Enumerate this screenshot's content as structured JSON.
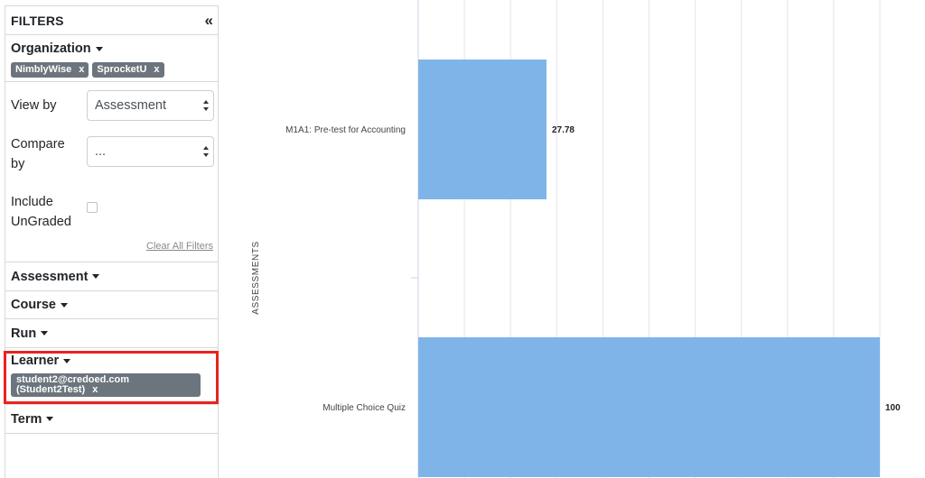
{
  "sidebar": {
    "title": "FILTERS",
    "collapse_icon": "«",
    "organization": {
      "label": "Organization",
      "chips": [
        {
          "label": "NimblyWise",
          "remove": "x"
        },
        {
          "label": "SprocketU",
          "remove": "x"
        }
      ]
    },
    "view_by": {
      "label": "View by",
      "value": "Assessment"
    },
    "compare_by": {
      "label_line1": "Compare",
      "label_line2": "by",
      "value": "..."
    },
    "include_ungraded": {
      "label_line1": "Include",
      "label_line2": "UnGraded",
      "checked": false
    },
    "clear_all": "Clear All Filters",
    "assessment": {
      "label": "Assessment"
    },
    "course": {
      "label": "Course"
    },
    "run": {
      "label": "Run"
    },
    "learner": {
      "label": "Learner",
      "chip_line1": "student2@credoed.com",
      "chip_line2": "(Student2Test)",
      "remove": "x"
    },
    "term": {
      "label": "Term"
    }
  },
  "colors": {
    "bar": "#7fb4e8",
    "chip": "#6c757d",
    "highlight": "#e8231f",
    "grid": "#e3e3ee"
  },
  "chart_data": {
    "type": "bar",
    "orientation": "horizontal",
    "categories": [
      "M1A1: Pre-test for Accounting",
      "Multiple Choice Quiz"
    ],
    "values": [
      27.78,
      100
    ],
    "value_labels": [
      "27.78",
      "100"
    ],
    "ylabel": "ASSESSMENTS",
    "xlim": [
      0,
      100
    ],
    "grid": true
  }
}
